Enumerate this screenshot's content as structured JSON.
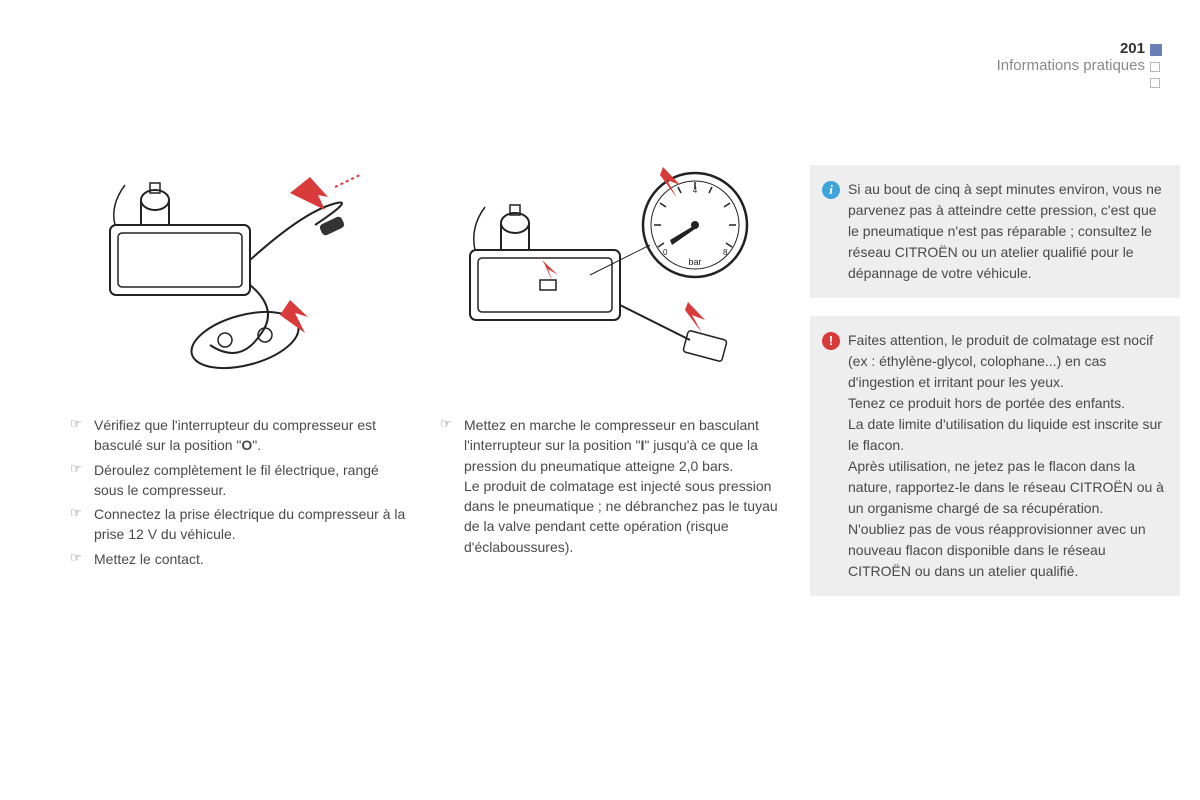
{
  "header": {
    "page_number": "201",
    "section": "Informations pratiques"
  },
  "columns": {
    "left": {
      "items": [
        "Vérifiez que l'interrupteur du compresseur est basculé sur la position \"O\".",
        "Déroulez complètement le fil électrique, rangé sous le compresseur.",
        "Connectez la prise électrique du compresseur à la prise 12 V du véhicule.",
        "Mettez le contact."
      ],
      "bold_chars": {
        "0": "O"
      }
    },
    "middle": {
      "items": [
        "Mettez en marche le compresseur en basculant l'interrupteur sur la position \"I\" jusqu'à ce que la pression du pneumatique atteigne 2,0 bars.\nLe produit de colmatage est injecté sous pression dans le pneumatique ; ne débranchez pas le tuyau de la valve pendant cette opération (risque d'éclaboussures)."
      ],
      "bold_chars": {
        "0": "I"
      }
    },
    "right": {
      "info_text": "Si au bout de cinq à sept minutes environ, vous ne parvenez pas à atteindre cette pression, c'est que le pneumatique n'est pas réparable ; consultez le réseau CITROËN ou un atelier qualifié pour le dépannage de votre véhicule.",
      "warn_text": "Faites attention, le produit de colmatage est nocif (ex : éthylène-glycol, colophane...) en cas d'ingestion et irritant pour les yeux.\nTenez ce produit hors de portée des enfants.\nLa date limite d'utilisation du liquide est inscrite sur le flacon.\nAprès utilisation, ne jetez pas le flacon dans la nature, rapportez-le dans le réseau CITROËN ou à un organisme chargé de sa récupération.\nN'oubliez pas de vous réapprovisionner avec un nouveau flacon disponible dans le réseau CITROËN ou dans un atelier qualifié."
    }
  },
  "colors": {
    "arrow": "#d93a3a",
    "marker": "#6a7fb5",
    "line": "#222222"
  }
}
